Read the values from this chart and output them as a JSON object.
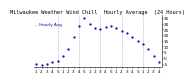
{
  "title": "Milwaukee Weather Wind Chill  Hourly Average  (24 Hours)",
  "hours": [
    0,
    1,
    2,
    3,
    4,
    5,
    6,
    7,
    8,
    9,
    10,
    11,
    12,
    13,
    14,
    15,
    16,
    17,
    18,
    19,
    20,
    21,
    22,
    23
  ],
  "wind_chill": [
    -5,
    -6,
    -5,
    -4,
    -3,
    2,
    8,
    18,
    28,
    35,
    30,
    26,
    25,
    27,
    28,
    26,
    24,
    22,
    18,
    15,
    12,
    8,
    2,
    -4
  ],
  "y_min": -8,
  "y_max": 38,
  "line_color": "#0000bb",
  "bg_color": "#ffffff",
  "grid_color": "#999999",
  "title_color": "#000000",
  "tick_label_color": "#000000",
  "title_fontsize": 3.8,
  "tick_fontsize": 3.0,
  "marker_size": 1.2,
  "y_tick_values": [
    -5,
    0,
    5,
    10,
    15,
    20,
    25,
    30,
    35
  ],
  "y_tick_labels": [
    "-5",
    "0",
    "5",
    "10",
    "15",
    "20",
    "25",
    "30",
    "35"
  ],
  "legend_text": "-- Hourly Avg",
  "legend_fontsize": 3.0,
  "vgrid_x": [
    4,
    8,
    12,
    16,
    20
  ]
}
